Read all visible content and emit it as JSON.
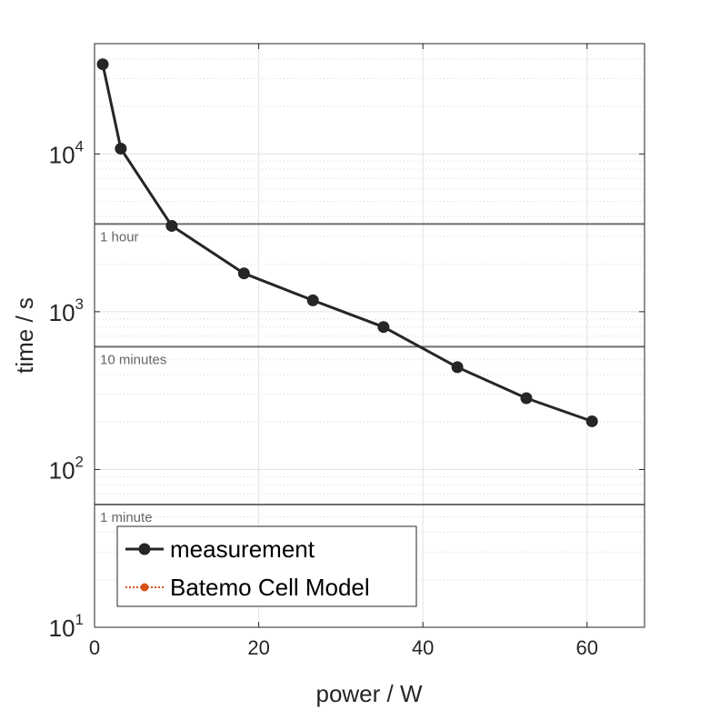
{
  "chart_data": {
    "type": "line",
    "xlabel": "power / W",
    "ylabel": "time / s",
    "xlim": [
      0,
      67
    ],
    "ylim": [
      10,
      50000
    ],
    "yscale": "log",
    "grid": true,
    "x_ticks": [
      "0",
      "20",
      "40",
      "60"
    ],
    "y_ticks": [
      {
        "base": "10",
        "exp": "1"
      },
      {
        "base": "10",
        "exp": "2"
      },
      {
        "base": "10",
        "exp": "3"
      },
      {
        "base": "10",
        "exp": "4"
      }
    ],
    "series": [
      {
        "name": "measurement",
        "color": "#262626",
        "x": [
          1.0,
          3.2,
          9.4,
          18.2,
          26.6,
          35.2,
          44.2,
          52.6,
          60.6
        ],
        "y": [
          37000,
          10800,
          3500,
          1750,
          1180,
          800,
          445,
          283,
          202
        ]
      },
      {
        "name": "Batemo Cell Model",
        "color": "#D95319",
        "x": [],
        "y": []
      }
    ],
    "reference_lines": [
      {
        "value": 3600,
        "label": "1 hour"
      },
      {
        "value": 600,
        "label": "10 minutes"
      },
      {
        "value": 60,
        "label": "1 minute"
      }
    ],
    "legend_position": "lower-left"
  }
}
